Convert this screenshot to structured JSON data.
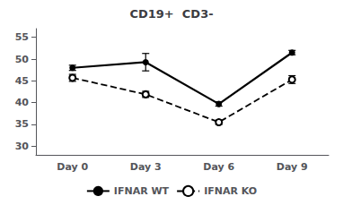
{
  "chart_data": {
    "type": "line",
    "title": "CD19+  CD3-",
    "categories": [
      "Day 0",
      "Day 3",
      "Day 6",
      "Day 9"
    ],
    "series": [
      {
        "name": "IFNAR WT",
        "color": "#000000",
        "line_style": "solid",
        "marker": "circle",
        "values": [
          48.0,
          49.3,
          39.7,
          51.5
        ],
        "errors": [
          0.6,
          2.0,
          0.5,
          0.5
        ]
      },
      {
        "name": "IFNAR KO",
        "color": "#000000",
        "line_style": "dashed",
        "marker": "emptyCircle",
        "values": [
          45.7,
          41.9,
          35.5,
          45.3
        ],
        "errors": [
          0.8,
          0.7,
          0.5,
          0.9
        ]
      }
    ],
    "ylim": [
      28,
      57
    ],
    "yticks": [
      30,
      35,
      40,
      45,
      50,
      55
    ],
    "legend": "bottom",
    "grid": false
  }
}
